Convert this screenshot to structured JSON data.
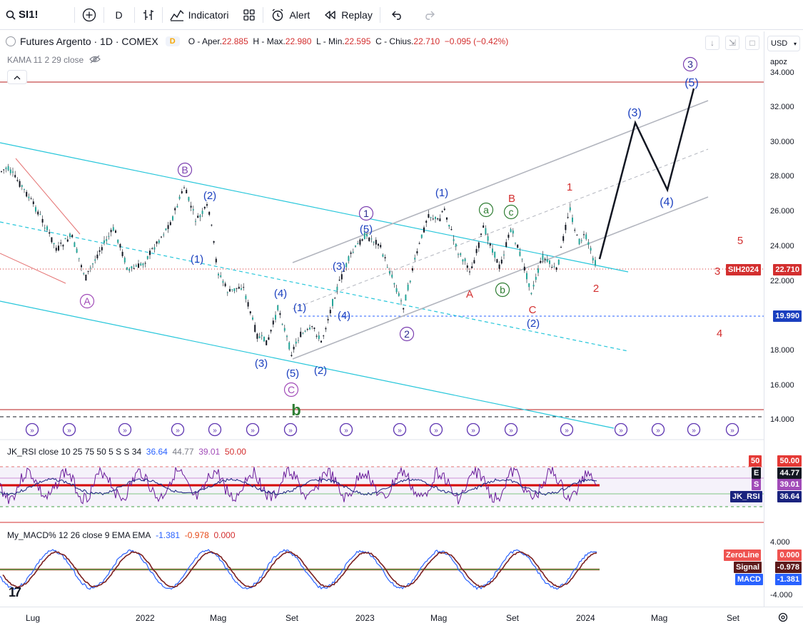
{
  "toolbar": {
    "symbol": "SI1!",
    "interval": "D",
    "indicators_label": "Indicatori",
    "alert_label": "Alert",
    "replay_label": "Replay"
  },
  "legend": {
    "title": "Futures Argento · 1D · COMEX",
    "badge": "D",
    "o_label": "O - Aper.",
    "o": "22.885",
    "h_label": "H - Max.",
    "h": "22.980",
    "l_label": "L - Min.",
    "l": "22.595",
    "c_label": "C - Chius.",
    "c": "22.710",
    "chg": "−0.095 (−0.42%)",
    "kama": "KAMA 11 2 29 close"
  },
  "rsi_legend": {
    "name": "JK_RSI close 10 25 75 50 5 S S 34",
    "v1": "36.64",
    "v2": "44.77",
    "v3": "39.01",
    "v4": "50.00"
  },
  "macd_legend": {
    "name": "My_MACD% 12 26 close 9 EMA EMA",
    "v1": "-1.381",
    "v2": "-0.978",
    "v3": "0.000"
  },
  "axis": {
    "currency": "USD",
    "scale_mode": "apoz",
    "price_ticks": [
      "34.000",
      "32.000",
      "30.000",
      "28.000",
      "26.000",
      "24.000",
      "22.000",
      "18.000",
      "16.000",
      "14.000"
    ],
    "last_symbol": "SIH2024",
    "last_price": "22.710",
    "hline_price": "19.990",
    "rsi_badges": [
      {
        "label": "50",
        "value": "50.00",
        "color": "#e53935"
      },
      {
        "label": "E",
        "value": "44.77",
        "color": "#131722"
      },
      {
        "label": "S",
        "value": "39.01",
        "color": "#a14bb8"
      },
      {
        "label": "JK_RSI",
        "value": "36.64",
        "color": "#1a237e"
      }
    ],
    "macd_ticks": [
      "4.000",
      "-4.000"
    ],
    "macd_badges": [
      {
        "label": "ZeroLine",
        "value": "0.000",
        "color": "#ef5350"
      },
      {
        "label": "Signal",
        "value": "-0.978",
        "color": "#5d1a1a"
      },
      {
        "label": "MACD",
        "value": "-1.381",
        "color": "#2962ff"
      }
    ]
  },
  "time_labels": [
    "Lug",
    "2022",
    "Mag",
    "Set",
    "2023",
    "Mag",
    "Set",
    "2024",
    "Mag",
    "Set"
  ],
  "wave_labels": {
    "primary": [
      "B",
      "A",
      "C",
      "1",
      "2",
      "3",
      "(5)"
    ],
    "intermediate": [
      "(2)",
      "(1)",
      "(4)",
      "(3)",
      "(5)",
      "(1)",
      "(4)",
      "(2)",
      "(3)",
      "(5)",
      "(1)",
      "(2)",
      "(3)",
      "(4)",
      "(5)"
    ],
    "minor_green": [
      "a",
      "b",
      "c"
    ],
    "red": [
      "B",
      "1",
      "A",
      "C",
      "2",
      "5",
      "3",
      "4"
    ],
    "big_b": "b"
  },
  "colors": {
    "accent": "#2962ff",
    "channel_cyan": "#26c6da",
    "channel_gray": "#b2b5be",
    "red": "#d32f2f",
    "purple": "#7b3fb0",
    "green": "#2e7d32"
  }
}
